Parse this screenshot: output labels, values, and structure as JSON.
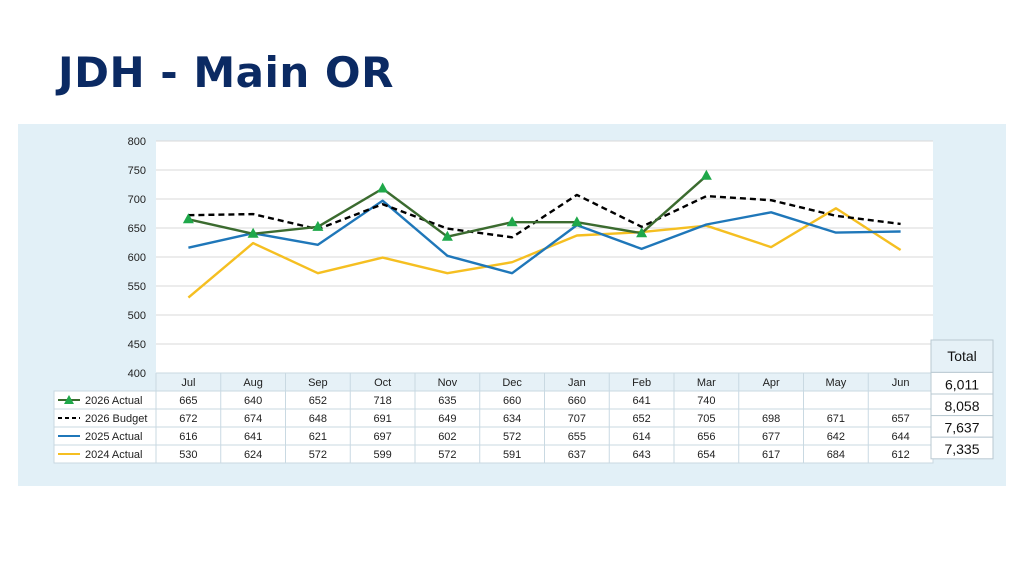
{
  "title": "JDH - Main OR",
  "chart_data": {
    "type": "line",
    "categories": [
      "Jul",
      "Aug",
      "Sep",
      "Oct",
      "Nov",
      "Dec",
      "Jan",
      "Feb",
      "Mar",
      "Apr",
      "May",
      "Jun"
    ],
    "ylim": [
      400,
      800
    ],
    "yticks": [
      400,
      450,
      500,
      550,
      600,
      650,
      700,
      750,
      800
    ],
    "grid": true,
    "legend": "data-table-left",
    "series": [
      {
        "name": "2026 Actual",
        "color": "#3b6b2f",
        "dash": false,
        "marker": "triangle",
        "marker_color": "#1fa84a",
        "values": [
          665,
          640,
          652,
          718,
          635,
          660,
          660,
          641,
          740,
          null,
          null,
          null
        ]
      },
      {
        "name": "2026 Budget",
        "color": "#000000",
        "dash": true,
        "marker": "none",
        "values": [
          672,
          674,
          648,
          691,
          649,
          634,
          707,
          652,
          705,
          698,
          671,
          657
        ]
      },
      {
        "name": "2025 Actual",
        "color": "#1f77b9",
        "dash": false,
        "marker": "none",
        "values": [
          616,
          641,
          621,
          697,
          602,
          572,
          655,
          614,
          656,
          677,
          642,
          644
        ]
      },
      {
        "name": "2024 Actual",
        "color": "#f5bf21",
        "dash": false,
        "marker": "none",
        "values": [
          530,
          624,
          572,
          599,
          572,
          591,
          637,
          643,
          654,
          617,
          684,
          612
        ]
      }
    ],
    "table_values": [
      [
        "665",
        "640",
        "652",
        "718",
        "635",
        "660",
        "660",
        "641",
        "740",
        "",
        "",
        ""
      ],
      [
        "672",
        "674",
        "648",
        "691",
        "649",
        "634",
        "707",
        "652",
        "705",
        "698",
        "671",
        "657"
      ],
      [
        "616",
        "641",
        "621",
        "697",
        "602",
        "572",
        "655",
        "614",
        "656",
        "677",
        "642",
        "644"
      ],
      [
        "530",
        "624",
        "572",
        "599",
        "572",
        "591",
        "637",
        "643",
        "654",
        "617",
        "684",
        "612"
      ]
    ],
    "totals_header": "Total",
    "totals": [
      "6,011",
      "8,058",
      "7,637",
      "7,335"
    ]
  }
}
